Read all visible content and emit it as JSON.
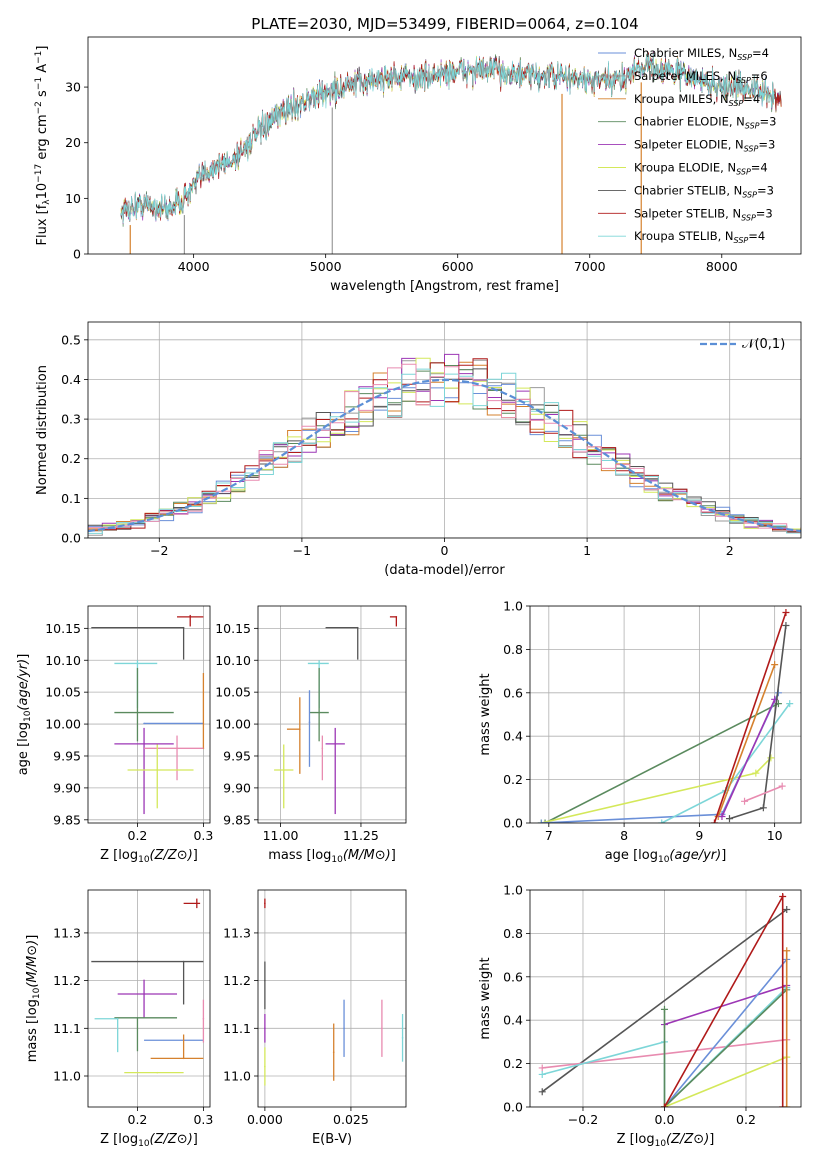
{
  "figure": {
    "title": "PLATE=2030, MJD=53499, FIBERID=0064, z=0.104"
  },
  "chart_data": [
    {
      "id": "spectrum",
      "type": "line",
      "title": "PLATE=2030, MJD=53499, FIBERID=0064, z=0.104",
      "xlabel": "wavelength [Angstrom, rest frame]",
      "ylabel": "Flux [f_λ 10^-17 erg cm^-2 s^-1 A^-1]",
      "xlim": [
        3200,
        8600
      ],
      "ylim": [
        0,
        39
      ],
      "xticks": [
        4000,
        5000,
        6000,
        7000,
        8000
      ],
      "yticks": [
        0,
        10,
        20,
        30
      ],
      "legend_position": "right",
      "continuum": {
        "x": [
          3450,
          3600,
          3800,
          3930,
          4100,
          4300,
          4500,
          4700,
          4850,
          5000,
          5150,
          5300,
          5500,
          5700,
          5900,
          6100,
          6300,
          6500,
          6700,
          6900,
          7000,
          7200,
          7400,
          7600,
          7800,
          8000,
          8200,
          8400
        ],
        "y": [
          7.5,
          9,
          8,
          10,
          15,
          17,
          22,
          26,
          27.5,
          29,
          30,
          31,
          32,
          31.5,
          32.5,
          33,
          33,
          32,
          32,
          31.5,
          31,
          31,
          34,
          33,
          31.5,
          30,
          30,
          28
        ]
      },
      "series": [
        {
          "name": "Chabrier MILES, N_SSP=4",
          "legend": "Chabrier MILES, N",
          "sub": "SSP",
          "val": "=4",
          "color": "#6a8fd8"
        },
        {
          "name": "Salpeter MILES, N_SSP=6",
          "legend": "Salpeter MILES, N",
          "sub": "SSP",
          "val": "=6",
          "color": "#9a9a9a"
        },
        {
          "name": "Kroupa MILES, N_SSP=4",
          "legend": "Kroupa MILES, N",
          "sub": "SSP",
          "val": "=4",
          "color": "#d5812e"
        },
        {
          "name": "Chabrier ELODIE, N_SSP=3",
          "legend": "Chabrier ELODIE, N",
          "sub": "SSP",
          "val": "=3",
          "color": "#5a8a5e"
        },
        {
          "name": "Salpeter ELODIE, N_SSP=3",
          "legend": "Salpeter ELODIE, N",
          "sub": "SSP",
          "val": "=3",
          "color": "#9c36b5"
        },
        {
          "name": "Kroupa ELODIE, N_SSP=4",
          "legend": "Kroupa ELODIE, N",
          "sub": "SSP",
          "val": "=4",
          "color": "#d4e85a"
        },
        {
          "name": "Chabrier STELIB, N_SSP=3",
          "legend": "Chabrier STELIB, N",
          "sub": "SSP",
          "val": "=3",
          "color": "#555555"
        },
        {
          "name": "Salpeter STELIB, N_SSP=3",
          "legend": "Salpeter STELIB, N",
          "sub": "SSP",
          "val": "=3",
          "color": "#b01a1a"
        },
        {
          "name": "Kroupa STELIB, N_SSP=4",
          "legend": "Kroupa STELIB, N",
          "sub": "SSP",
          "val": "=4",
          "color": "#7dd6d8"
        }
      ],
      "spikes": [
        {
          "x": 3520,
          "color": "#d5812e"
        },
        {
          "x": 3930,
          "color": "#9a9a9a"
        },
        {
          "x": 5050,
          "color": "#9a9a9a"
        },
        {
          "x": 6790,
          "color": "#d5812e"
        },
        {
          "x": 7390,
          "color": "#d5812e"
        }
      ]
    },
    {
      "id": "residuals",
      "type": "step",
      "xlabel": "(data-model)/error",
      "ylabel": "Normed distribution",
      "xlim": [
        -2.5,
        2.5
      ],
      "ylim": [
        0,
        0.545
      ],
      "xticks": [
        -2,
        -1,
        0,
        1,
        2
      ],
      "yticks": [
        0.0,
        0.1,
        0.2,
        0.3,
        0.4,
        0.5
      ],
      "legend": "𝒩(0,1)",
      "reference_curve": {
        "name": "N(0,1)",
        "mean": 0,
        "sigma": 1,
        "color": "#5b8fd6"
      },
      "bin_width": 0.1,
      "histogram_colors": [
        "#6a8fd8",
        "#9a9a9a",
        "#d5812e",
        "#5a8a5e",
        "#9c36b5",
        "#d4e85a",
        "#555555",
        "#b01a1a",
        "#7dd6d8",
        "#e88bb0"
      ]
    },
    {
      "id": "age-vs-Z",
      "type": "scatter",
      "xlabel": "Z [log10(Z/Z⊙)]",
      "ylabel": "age  [log10(age/yr)]",
      "xlim": [
        0.125,
        0.31
      ],
      "ylim": [
        9.845,
        10.185
      ],
      "xticks": [
        0.2,
        0.3
      ],
      "yticks": [
        9.85,
        9.9,
        9.95,
        10.0,
        10.05,
        10.1,
        10.15
      ],
      "points": [
        {
          "x": 0.28,
          "y": 10.168,
          "xerr": [
            0.02,
            0.02
          ],
          "yerr": [
            0.015,
            0.003
          ],
          "color": "#b01a1a"
        },
        {
          "x": 0.27,
          "y": 10.151,
          "xerr": [
            0.14,
            0.0
          ],
          "yerr": [
            0.05,
            0.0
          ],
          "color": "#555555"
        },
        {
          "x": 0.2,
          "y": 10.095,
          "xerr": [
            0.035,
            0.03
          ],
          "yerr": [
            0.07,
            0.005
          ],
          "color": "#7dd6d8"
        },
        {
          "x": 0.2,
          "y": 10.018,
          "xerr": [
            0.035,
            0.055
          ],
          "yerr": [
            0.045,
            0.07
          ],
          "color": "#5a8a5e"
        },
        {
          "x": 0.21,
          "y": 10.001,
          "xerr": [
            0.0,
            0.09
          ],
          "yerr": [
            0.0,
            0.0
          ],
          "color": "#6a8fd8"
        },
        {
          "x": 0.3,
          "y": 9.962,
          "xerr": [
            0.0,
            0.0
          ],
          "yerr": [
            0.0,
            0.118
          ],
          "color": "#d5812e"
        },
        {
          "x": 0.21,
          "y": 9.969,
          "xerr": [
            0.045,
            0.045
          ],
          "yerr": [
            0.11,
            0.025
          ],
          "color": "#9c36b5"
        },
        {
          "x": 0.26,
          "y": 9.962,
          "xerr": [
            0.05,
            0.04
          ],
          "yerr": [
            0.05,
            0.02
          ],
          "color": "#e88bb0"
        },
        {
          "x": 0.23,
          "y": 9.928,
          "xerr": [
            0.045,
            0.055
          ],
          "yerr": [
            0.06,
            0.04
          ],
          "color": "#d4e85a"
        }
      ]
    },
    {
      "id": "age-vs-mass",
      "type": "scatter",
      "xlabel": "mass [log10(M/M⊙)]",
      "ylabel": "",
      "xlim": [
        10.93,
        11.39
      ],
      "ylim": [
        9.845,
        10.185
      ],
      "xticks": [
        11.0,
        11.25
      ],
      "yticks": [
        9.85,
        9.9,
        9.95,
        10.0,
        10.05,
        10.1,
        10.15
      ],
      "points": [
        {
          "x": 11.36,
          "y": 10.168,
          "xerr": [
            0.02,
            0.0
          ],
          "yerr": [
            0.015,
            0.0
          ],
          "color": "#b01a1a"
        },
        {
          "x": 11.24,
          "y": 10.151,
          "xerr": [
            0.1,
            0.0
          ],
          "yerr": [
            0.05,
            0.0
          ],
          "color": "#555555"
        },
        {
          "x": 11.12,
          "y": 10.095,
          "xerr": [
            0.035,
            0.03
          ],
          "yerr": [
            0.07,
            0.005
          ],
          "color": "#7dd6d8"
        },
        {
          "x": 11.12,
          "y": 10.018,
          "xerr": [
            0.03,
            0.03
          ],
          "yerr": [
            0.045,
            0.07
          ],
          "color": "#5a8a5e"
        },
        {
          "x": 11.06,
          "y": 9.992,
          "xerr": [
            0.04,
            0.0
          ],
          "yerr": [
            0.07,
            0.05
          ],
          "color": "#d5812e"
        },
        {
          "x": 11.09,
          "y": 10.003,
          "xerr": [
            0.0,
            0.0
          ],
          "yerr": [
            0.07,
            0.05
          ],
          "color": "#6a8fd8"
        },
        {
          "x": 11.17,
          "y": 9.969,
          "xerr": [
            0.03,
            0.03
          ],
          "yerr": [
            0.11,
            0.025
          ],
          "color": "#9c36b5"
        },
        {
          "x": 11.13,
          "y": 9.962,
          "xerr": [
            0.0,
            0.0
          ],
          "yerr": [
            0.05,
            0.02
          ],
          "color": "#e88bb0"
        },
        {
          "x": 11.01,
          "y": 9.928,
          "xerr": [
            0.03,
            0.03
          ],
          "yerr": [
            0.06,
            0.04
          ],
          "color": "#d4e85a"
        }
      ]
    },
    {
      "id": "weight-vs-age",
      "type": "line",
      "xlabel": "age  [log10(age/yr)]",
      "ylabel": "mass weight",
      "xlim": [
        6.75,
        10.35
      ],
      "ylim": [
        0,
        1.0
      ],
      "xticks": [
        7,
        8,
        9,
        10
      ],
      "yticks": [
        0.0,
        0.2,
        0.4,
        0.6,
        0.8,
        1.0
      ],
      "series": [
        {
          "color": "#5a8a5e",
          "x": [
            6.95,
            10.05
          ],
          "y": [
            0.0,
            0.55
          ]
        },
        {
          "color": "#d4e85a",
          "x": [
            6.9,
            9.75,
            9.95
          ],
          "y": [
            0.0,
            0.23,
            0.3
          ]
        },
        {
          "color": "#6a8fd8",
          "x": [
            6.9,
            9.3,
            10.05
          ],
          "y": [
            0.0,
            0.04,
            0.6
          ]
        },
        {
          "color": "#7dd6d8",
          "x": [
            8.5,
            9.35,
            10.2
          ],
          "y": [
            0.0,
            0.15,
            0.55
          ]
        },
        {
          "color": "#d5812e",
          "x": [
            9.25,
            10.0
          ],
          "y": [
            0.03,
            0.73
          ]
        },
        {
          "color": "#9c36b5",
          "x": [
            9.3,
            10.0
          ],
          "y": [
            0.03,
            0.57
          ]
        },
        {
          "color": "#555555",
          "x": [
            9.4,
            9.85,
            10.15
          ],
          "y": [
            0.02,
            0.07,
            0.91
          ]
        },
        {
          "color": "#b01a1a",
          "x": [
            9.2,
            10.15
          ],
          "y": [
            0.0,
            0.97
          ]
        },
        {
          "color": "#e88bb0",
          "x": [
            9.6,
            10.1
          ],
          "y": [
            0.1,
            0.17
          ]
        }
      ]
    },
    {
      "id": "mass-vs-Z",
      "type": "scatter",
      "xlabel": "Z [log10(Z/Z⊙)]",
      "ylabel": "mass [log10(M/M⊙)]",
      "xlim": [
        0.125,
        0.31
      ],
      "ylim": [
        10.935,
        11.39
      ],
      "xticks": [
        0.2,
        0.3
      ],
      "yticks": [
        11.0,
        11.1,
        11.2,
        11.3
      ],
      "points": [
        {
          "x": 0.29,
          "y": 11.362,
          "xerr": [
            0.02,
            0.005
          ],
          "yerr": [
            0.01,
            0.01
          ],
          "color": "#b01a1a"
        },
        {
          "x": 0.27,
          "y": 11.24,
          "xerr": [
            0.14,
            0.03
          ],
          "yerr": [
            0.09,
            0.0
          ],
          "color": "#555555"
        },
        {
          "x": 0.21,
          "y": 11.172,
          "xerr": [
            0.04,
            0.05
          ],
          "yerr": [
            0.05,
            0.03
          ],
          "color": "#9c36b5"
        },
        {
          "x": 0.2,
          "y": 11.122,
          "xerr": [
            0.035,
            0.06
          ],
          "yerr": [
            0.07,
            0.0
          ],
          "color": "#5a8a5e"
        },
        {
          "x": 0.17,
          "y": 11.12,
          "xerr": [
            0.035,
            0.0
          ],
          "yerr": [
            0.07,
            0.0
          ],
          "color": "#7dd6d8"
        },
        {
          "x": 0.27,
          "y": 11.075,
          "xerr": [
            0.06,
            0.03
          ],
          "yerr": [
            0.0,
            0.0
          ],
          "color": "#6a8fd8"
        },
        {
          "x": 0.27,
          "y": 11.037,
          "xerr": [
            0.05,
            0.03
          ],
          "yerr": [
            0.0,
            0.05
          ],
          "color": "#d5812e"
        },
        {
          "x": 0.23,
          "y": 11.007,
          "xerr": [
            0.05,
            0.04
          ],
          "yerr": [
            0.0,
            0.0
          ],
          "color": "#d4e85a"
        },
        {
          "x": 0.3,
          "y": 11.12,
          "xerr": [
            0.0,
            0.0
          ],
          "yerr": [
            0.05,
            0.04
          ],
          "color": "#e88bb0"
        }
      ]
    },
    {
      "id": "mass-vs-EBV",
      "type": "scatter",
      "xlabel": "E(B-V)",
      "ylabel": "",
      "xlim": [
        -0.002,
        0.041
      ],
      "ylim": [
        10.935,
        11.39
      ],
      "xticks": [
        0.0,
        0.025
      ],
      "yticks": [
        11.0,
        11.1,
        11.2,
        11.3
      ],
      "points": [
        {
          "x": 0.0,
          "y": 11.362,
          "yerr": [
            0.01,
            0.01
          ],
          "color": "#b01a1a"
        },
        {
          "x": 0.0,
          "y": 11.2,
          "yerr": [
            0.06,
            0.04
          ],
          "color": "#555555"
        },
        {
          "x": 0.0,
          "y": 11.1,
          "yerr": [
            0.03,
            0.03
          ],
          "color": "#9c36b5"
        },
        {
          "x": 0.0,
          "y": 11.02,
          "yerr": [
            0.04,
            0.04
          ],
          "color": "#d4e85a"
        },
        {
          "x": 0.02,
          "y": 11.05,
          "yerr": [
            0.06,
            0.06
          ],
          "color": "#d5812e"
        },
        {
          "x": 0.023,
          "y": 11.1,
          "yerr": [
            0.06,
            0.06
          ],
          "color": "#6a8fd8"
        },
        {
          "x": 0.034,
          "y": 11.1,
          "yerr": [
            0.06,
            0.06
          ],
          "color": "#e88bb0"
        },
        {
          "x": 0.04,
          "y": 11.08,
          "yerr": [
            0.05,
            0.05
          ],
          "color": "#7dd6d8"
        }
      ]
    },
    {
      "id": "weight-vs-Z",
      "type": "line",
      "xlabel": "Z [log10(Z/Z⊙)]",
      "ylabel": "mass weight",
      "xlim": [
        -0.33,
        0.335
      ],
      "ylim": [
        0,
        1.0
      ],
      "xticks": [
        -0.2,
        0.0,
        0.2
      ],
      "yticks": [
        0.0,
        0.2,
        0.4,
        0.6,
        0.8,
        1.0
      ],
      "series": [
        {
          "color": "#555555",
          "x": [
            -0.3,
            0.3
          ],
          "y": [
            0.07,
            0.91
          ]
        },
        {
          "color": "#e88bb0",
          "x": [
            -0.3,
            0.3
          ],
          "y": [
            0.18,
            0.31
          ]
        },
        {
          "color": "#7dd6d8",
          "x": [
            -0.3,
            0.0,
            0.0,
            0.3
          ],
          "y": [
            0.15,
            0.3,
            0.0,
            0.55
          ]
        },
        {
          "color": "#9c36b5",
          "x": [
            0.0,
            0.3
          ],
          "y": [
            0.38,
            0.56
          ]
        },
        {
          "color": "#6a8fd8",
          "x": [
            0.0,
            0.3
          ],
          "y": [
            0.0,
            0.68
          ]
        },
        {
          "color": "#5a8a5e",
          "x": [
            0.0,
            0.0,
            0.3
          ],
          "y": [
            0.45,
            0.0,
            0.54
          ]
        },
        {
          "color": "#d4e85a",
          "x": [
            0.0,
            0.3
          ],
          "y": [
            0.0,
            0.23
          ]
        },
        {
          "color": "#b01a1a",
          "x": [
            0.0,
            0.29,
            0.29
          ],
          "y": [
            0.0,
            0.97,
            0.0
          ]
        },
        {
          "color": "#d5812e",
          "x": [
            0.3,
            0.3
          ],
          "y": [
            0.0,
            0.72
          ]
        }
      ]
    }
  ]
}
